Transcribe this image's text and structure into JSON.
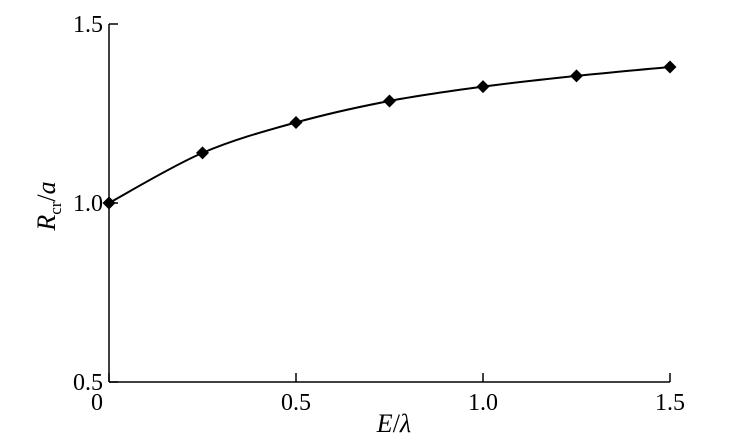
{
  "chart_data": {
    "type": "line",
    "title": "",
    "xlabel": {
      "main": "E",
      "sep": "/",
      "var": "λ"
    },
    "ylabel": {
      "main": "R",
      "sub": "cr",
      "sep": "/",
      "var": "a"
    },
    "xlim": [
      0,
      1.5
    ],
    "ylim": [
      0.5,
      1.5
    ],
    "x_ticks": [
      0,
      0.5,
      1.0,
      1.5
    ],
    "x_tick_labels": [
      "0",
      "0.5",
      "1.0",
      "1.5"
    ],
    "y_ticks": [
      0.5,
      1.0,
      1.5
    ],
    "y_tick_labels": [
      "0.5",
      "1.0",
      "1.5"
    ],
    "grid": false,
    "legend": "none",
    "line_color": "#000000",
    "marker": "diamond",
    "series": [
      {
        "x": [
          0,
          0.25,
          0.5,
          0.75,
          1.0,
          1.25,
          1.5
        ],
        "y": [
          1.0,
          1.14,
          1.225,
          1.285,
          1.325,
          1.355,
          1.38
        ]
      }
    ]
  }
}
